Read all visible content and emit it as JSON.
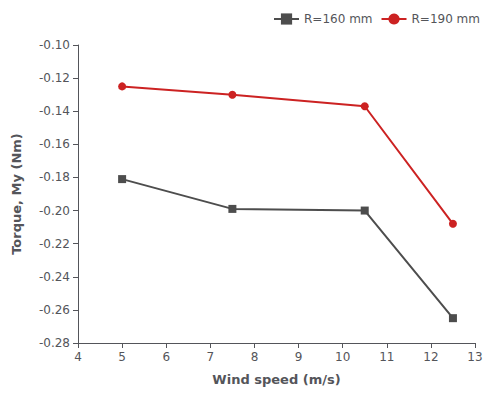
{
  "chart_data": {
    "type": "line",
    "xlabel": "Wind speed (m/s)",
    "ylabel": "Torque, My (Nm)",
    "series": [
      {
        "name": "R=160 mm",
        "color": "#4d4d4d",
        "marker": "square",
        "x": [
          5,
          7.5,
          10.5,
          12.5
        ],
        "values": [
          -0.181,
          -0.199,
          -0.2,
          -0.265
        ]
      },
      {
        "name": "R=190 mm",
        "color": "#cc2222",
        "marker": "circle",
        "x": [
          5,
          7.5,
          10.5,
          12.5
        ],
        "values": [
          -0.125,
          -0.13,
          -0.137,
          -0.208
        ]
      }
    ],
    "xlim": [
      4,
      13
    ],
    "xticks": [
      4,
      5,
      6,
      7,
      8,
      9,
      10,
      11,
      12,
      13
    ],
    "ylim": [
      -0.28,
      -0.1
    ],
    "yticks": [
      -0.28,
      -0.26,
      -0.24,
      -0.22,
      {
        "value": -0.2,
        "label": "-0.20"
      },
      -0.18,
      -0.16,
      -0.14,
      -0.12,
      {
        "value": -0.1,
        "label": "-0.10"
      }
    ],
    "grid": false,
    "legend": "upper right"
  }
}
